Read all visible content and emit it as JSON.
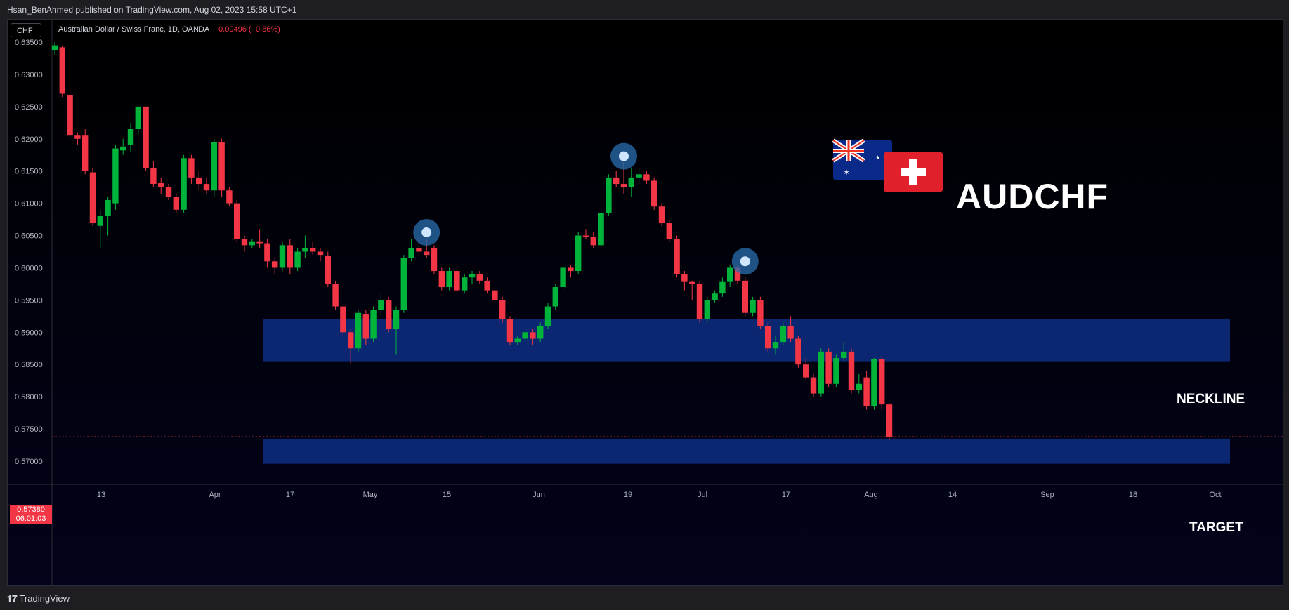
{
  "header": {
    "published": "Hsan_BenAhmed published on TradingView.com, Aug 02, 2023 15:58 UTC+1"
  },
  "symbol_bar": {
    "currency": "CHF",
    "title": "Australian Dollar / Swiss Franc, 1D, OANDA",
    "change": "−0.00496 (−0.86%)"
  },
  "price_tag": {
    "price": "0.57380",
    "countdown": "06:01:03"
  },
  "overlay": {
    "pair": "AUDCHF"
  },
  "colors": {
    "up": "#089981",
    "up_fill": "#00b33a",
    "down": "#f23645",
    "zone": "#0d2a7a",
    "marker": "#2a6fb0",
    "background": "#000000"
  },
  "footer": {
    "brand": "TradingView"
  },
  "chart_data": {
    "type": "candlestick",
    "y_ticks": [
      "0.63500",
      "0.63000",
      "0.62500",
      "0.62000",
      "0.61500",
      "0.61000",
      "0.60500",
      "0.60000",
      "0.59500",
      "0.59000",
      "0.58500",
      "0.58000",
      "0.57500",
      "0.57000"
    ],
    "x_ticks": [
      "13",
      "Apr",
      "17",
      "May",
      "15",
      "Jun",
      "19",
      "Jul",
      "17",
      "Aug",
      "14",
      "Sep",
      "18",
      "Oct"
    ],
    "ylim": [
      0.567,
      0.636
    ],
    "zones": [
      {
        "label": "NECKLINE",
        "from": 0.5855,
        "to": 0.592
      },
      {
        "label": "TARGET",
        "from": 0.5696,
        "to": 0.5735
      }
    ],
    "last_price": 0.5738,
    "markers": [
      {
        "type": "circle",
        "price": 0.6055
      },
      {
        "type": "circle",
        "price": 0.6173
      },
      {
        "type": "circle",
        "price": 0.601
      }
    ],
    "candles": [
      [
        0.6338,
        0.635,
        0.633,
        0.6345
      ],
      [
        0.6342,
        0.6345,
        0.6265,
        0.627
      ],
      [
        0.6268,
        0.6275,
        0.62,
        0.6205
      ],
      [
        0.6205,
        0.621,
        0.619,
        0.62
      ],
      [
        0.6205,
        0.6215,
        0.6145,
        0.615
      ],
      [
        0.6148,
        0.6155,
        0.6065,
        0.607
      ],
      [
        0.6065,
        0.609,
        0.603,
        0.608
      ],
      [
        0.608,
        0.611,
        0.605,
        0.6105
      ],
      [
        0.61,
        0.619,
        0.609,
        0.6185
      ],
      [
        0.6182,
        0.62,
        0.6175,
        0.6188
      ],
      [
        0.619,
        0.6225,
        0.618,
        0.6215
      ],
      [
        0.6215,
        0.625,
        0.6205,
        0.625
      ],
      [
        0.625,
        0.625,
        0.615,
        0.6155
      ],
      [
        0.6155,
        0.6165,
        0.6125,
        0.613
      ],
      [
        0.6132,
        0.614,
        0.6115,
        0.6125
      ],
      [
        0.6125,
        0.613,
        0.6105,
        0.611
      ],
      [
        0.611,
        0.6115,
        0.6085,
        0.609
      ],
      [
        0.609,
        0.6175,
        0.6085,
        0.617
      ],
      [
        0.617,
        0.6175,
        0.613,
        0.614
      ],
      [
        0.614,
        0.615,
        0.612,
        0.613
      ],
      [
        0.613,
        0.614,
        0.6115,
        0.612
      ],
      [
        0.612,
        0.62,
        0.611,
        0.6195
      ],
      [
        0.6195,
        0.62,
        0.611,
        0.612
      ],
      [
        0.612,
        0.6125,
        0.6095,
        0.61
      ],
      [
        0.61,
        0.6105,
        0.604,
        0.6045
      ],
      [
        0.6045,
        0.605,
        0.6025,
        0.6035
      ],
      [
        0.6035,
        0.6045,
        0.603,
        0.604
      ],
      [
        0.604,
        0.606,
        0.603,
        0.6038
      ],
      [
        0.6038,
        0.6045,
        0.6,
        0.601
      ],
      [
        0.601,
        0.6015,
        0.599,
        0.6
      ],
      [
        0.6,
        0.604,
        0.5995,
        0.6035
      ],
      [
        0.6035,
        0.6045,
        0.599,
        0.6
      ],
      [
        0.6,
        0.603,
        0.5995,
        0.6025
      ],
      [
        0.6025,
        0.605,
        0.6015,
        0.603
      ],
      [
        0.603,
        0.604,
        0.602,
        0.6025
      ],
      [
        0.6025,
        0.603,
        0.601,
        0.602
      ],
      [
        0.6018,
        0.6025,
        0.597,
        0.5975
      ],
      [
        0.5975,
        0.598,
        0.5935,
        0.594
      ],
      [
        0.594,
        0.5945,
        0.5895,
        0.59
      ],
      [
        0.59,
        0.5905,
        0.585,
        0.5875
      ],
      [
        0.5875,
        0.5935,
        0.587,
        0.593
      ],
      [
        0.5928,
        0.5935,
        0.588,
        0.589
      ],
      [
        0.589,
        0.594,
        0.5885,
        0.5935
      ],
      [
        0.5935,
        0.596,
        0.5925,
        0.595
      ],
      [
        0.595,
        0.5955,
        0.59,
        0.5905
      ],
      [
        0.5905,
        0.594,
        0.5865,
        0.5935
      ],
      [
        0.5935,
        0.602,
        0.593,
        0.6015
      ],
      [
        0.6015,
        0.6045,
        0.601,
        0.603
      ],
      [
        0.603,
        0.605,
        0.602,
        0.6025
      ],
      [
        0.6025,
        0.6045,
        0.6015,
        0.602
      ],
      [
        0.603,
        0.6035,
        0.599,
        0.5995
      ],
      [
        0.5995,
        0.6,
        0.5965,
        0.597
      ],
      [
        0.597,
        0.6,
        0.5965,
        0.5995
      ],
      [
        0.5995,
        0.6,
        0.596,
        0.5965
      ],
      [
        0.5965,
        0.599,
        0.596,
        0.5985
      ],
      [
        0.5985,
        0.5995,
        0.5975,
        0.599
      ],
      [
        0.599,
        0.5995,
        0.5975,
        0.598
      ],
      [
        0.598,
        0.5985,
        0.596,
        0.5965
      ],
      [
        0.5965,
        0.597,
        0.5945,
        0.595
      ],
      [
        0.595,
        0.5955,
        0.5915,
        0.592
      ],
      [
        0.592,
        0.5925,
        0.588,
        0.5885
      ],
      [
        0.5885,
        0.5895,
        0.588,
        0.589
      ],
      [
        0.589,
        0.5905,
        0.5885,
        0.59
      ],
      [
        0.59,
        0.5905,
        0.588,
        0.589
      ],
      [
        0.589,
        0.5915,
        0.5885,
        0.591
      ],
      [
        0.591,
        0.5945,
        0.5905,
        0.594
      ],
      [
        0.594,
        0.5975,
        0.5935,
        0.597
      ],
      [
        0.597,
        0.6005,
        0.596,
        0.6
      ],
      [
        0.6,
        0.6005,
        0.5985,
        0.5995
      ],
      [
        0.5995,
        0.6055,
        0.599,
        0.605
      ],
      [
        0.605,
        0.606,
        0.6045,
        0.6048
      ],
      [
        0.6048,
        0.6055,
        0.603,
        0.6035
      ],
      [
        0.6035,
        0.609,
        0.603,
        0.6085
      ],
      [
        0.6085,
        0.6145,
        0.608,
        0.614
      ],
      [
        0.614,
        0.615,
        0.6125,
        0.613
      ],
      [
        0.613,
        0.6175,
        0.6115,
        0.6125
      ],
      [
        0.6125,
        0.6155,
        0.611,
        0.614
      ],
      [
        0.614,
        0.6155,
        0.613,
        0.6145
      ],
      [
        0.6145,
        0.615,
        0.613,
        0.6135
      ],
      [
        0.6135,
        0.614,
        0.609,
        0.6095
      ],
      [
        0.6095,
        0.61,
        0.6065,
        0.607
      ],
      [
        0.607,
        0.6075,
        0.604,
        0.6045
      ],
      [
        0.6045,
        0.605,
        0.5985,
        0.599
      ],
      [
        0.599,
        0.5995,
        0.5965,
        0.5978
      ],
      [
        0.5978,
        0.598,
        0.595,
        0.5975
      ],
      [
        0.5975,
        0.5978,
        0.5915,
        0.592
      ],
      [
        0.592,
        0.5955,
        0.5915,
        0.595
      ],
      [
        0.595,
        0.5965,
        0.5945,
        0.596
      ],
      [
        0.596,
        0.5985,
        0.5955,
        0.5978
      ],
      [
        0.5978,
        0.6005,
        0.597,
        0.6
      ],
      [
        0.6,
        0.6005,
        0.5975,
        0.598
      ],
      [
        0.598,
        0.5985,
        0.5925,
        0.593
      ],
      [
        0.593,
        0.5955,
        0.5925,
        0.595
      ],
      [
        0.595,
        0.5955,
        0.5905,
        0.591
      ],
      [
        0.591,
        0.5915,
        0.587,
        0.5875
      ],
      [
        0.5875,
        0.5895,
        0.5865,
        0.5885
      ],
      [
        0.5885,
        0.5915,
        0.588,
        0.591
      ],
      [
        0.591,
        0.5925,
        0.5885,
        0.589
      ],
      [
        0.589,
        0.5895,
        0.5845,
        0.585
      ],
      [
        0.585,
        0.586,
        0.5825,
        0.583
      ],
      [
        0.583,
        0.5835,
        0.58,
        0.5805
      ],
      [
        0.5805,
        0.5875,
        0.58,
        0.587
      ],
      [
        0.587,
        0.5875,
        0.5815,
        0.582
      ],
      [
        0.582,
        0.5865,
        0.5815,
        0.586
      ],
      [
        0.586,
        0.5885,
        0.5855,
        0.587
      ],
      [
        0.587,
        0.5875,
        0.5805,
        0.581
      ],
      [
        0.581,
        0.5835,
        0.5805,
        0.582
      ],
      [
        0.583,
        0.584,
        0.578,
        0.5785
      ],
      [
        0.5785,
        0.586,
        0.578,
        0.5858
      ],
      [
        0.5858,
        0.5862,
        0.578,
        0.5788
      ],
      [
        0.5788,
        0.579,
        0.5733,
        0.5738
      ]
    ]
  }
}
